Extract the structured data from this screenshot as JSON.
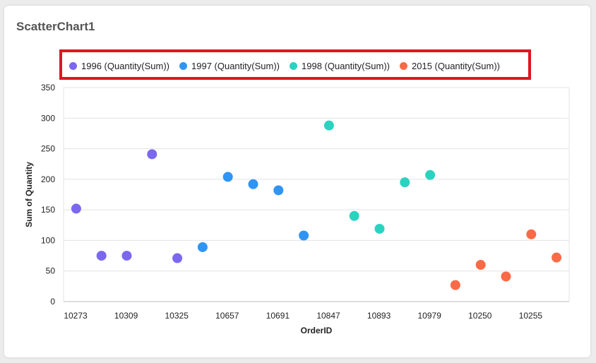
{
  "card": {
    "title": "ScatterChart1"
  },
  "chart_data": {
    "type": "scatter",
    "xlabel": "OrderID",
    "ylabel": "Sum of Quantity",
    "ylim": [
      0,
      350
    ],
    "yticks": [
      0,
      50,
      100,
      150,
      200,
      250,
      300,
      350
    ],
    "grid": true,
    "legend_position": "top",
    "categories": [
      "10273",
      "10279",
      "10309",
      "10317",
      "10325",
      "10339",
      "10657",
      "10675",
      "10691",
      "10711",
      "10847",
      "10859",
      "10893",
      "10920",
      "10979",
      "10999",
      "10250",
      "10254",
      "10255",
      "10263"
    ],
    "visible_tick_labels": [
      "10273",
      "10309",
      "10325",
      "10657",
      "10691",
      "10847",
      "10893",
      "10979",
      "10250",
      "10255"
    ],
    "series": [
      {
        "name": "1996 (Quantity(Sum))",
        "color": "#7b68ee",
        "points": [
          {
            "x": "10273",
            "y": 152
          },
          {
            "x": "10279",
            "y": 75
          },
          {
            "x": "10309",
            "y": 75
          },
          {
            "x": "10317",
            "y": 241
          },
          {
            "x": "10325",
            "y": 71
          }
        ]
      },
      {
        "name": "1997 (Quantity(Sum))",
        "color": "#2f95f5",
        "points": [
          {
            "x": "10339",
            "y": 89
          },
          {
            "x": "10657",
            "y": 204
          },
          {
            "x": "10675",
            "y": 192
          },
          {
            "x": "10691",
            "y": 182
          },
          {
            "x": "10711",
            "y": 108
          }
        ]
      },
      {
        "name": "1998 (Quantity(Sum))",
        "color": "#2ad3c0",
        "points": [
          {
            "x": "10847",
            "y": 288
          },
          {
            "x": "10859",
            "y": 140
          },
          {
            "x": "10893",
            "y": 119
          },
          {
            "x": "10920",
            "y": 195
          },
          {
            "x": "10979",
            "y": 207
          }
        ]
      },
      {
        "name": "2015 (Quantity(Sum))",
        "color": "#f96b47",
        "points": [
          {
            "x": "10999",
            "y": 27
          },
          {
            "x": "10250",
            "y": 60
          },
          {
            "x": "10254",
            "y": 41
          },
          {
            "x": "10255",
            "y": 110
          },
          {
            "x": "10263",
            "y": 72
          }
        ]
      }
    ]
  }
}
